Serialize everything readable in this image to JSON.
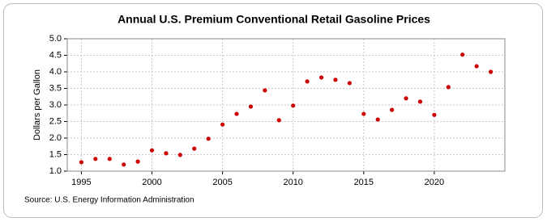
{
  "chart_data": {
    "type": "scatter",
    "title": "Annual U.S. Premium Conventional Retail Gasoline Prices",
    "y_label": "Dollars per Gallon",
    "source": "Source: U.S. Energy Information Administration",
    "x": [
      1995,
      1996,
      1997,
      1998,
      1999,
      2000,
      2001,
      2002,
      2003,
      2004,
      2005,
      2006,
      2007,
      2008,
      2009,
      2010,
      2011,
      2012,
      2013,
      2014,
      2015,
      2016,
      2017,
      2018,
      2019,
      2020,
      2021,
      2022,
      2023,
      2024
    ],
    "series": [
      {
        "name": "Premium Conventional",
        "color": "#cc0000",
        "values": [
          1.27,
          1.37,
          1.37,
          1.2,
          1.29,
          1.63,
          1.54,
          1.49,
          1.68,
          1.98,
          2.41,
          2.73,
          2.95,
          3.44,
          2.54,
          2.98,
          3.71,
          3.83,
          3.76,
          3.66,
          2.73,
          2.56,
          2.85,
          3.2,
          3.1,
          2.7,
          3.54,
          4.52,
          4.17,
          4.0
        ]
      }
    ],
    "xlim": [
      1994,
      2025
    ],
    "xticks": [
      1995,
      2000,
      2005,
      2010,
      2015,
      2020
    ],
    "ylim": [
      1,
      5
    ],
    "yticks": [
      {
        "value": 1,
        "label": "1.0"
      },
      1.5,
      {
        "value": 2,
        "label": "2.0"
      },
      2.5,
      {
        "value": 3,
        "label": "3.0"
      },
      3.5,
      {
        "value": 4,
        "label": "4.0"
      },
      4.5,
      {
        "value": 5,
        "label": "5.0"
      }
    ],
    "grid": true
  }
}
